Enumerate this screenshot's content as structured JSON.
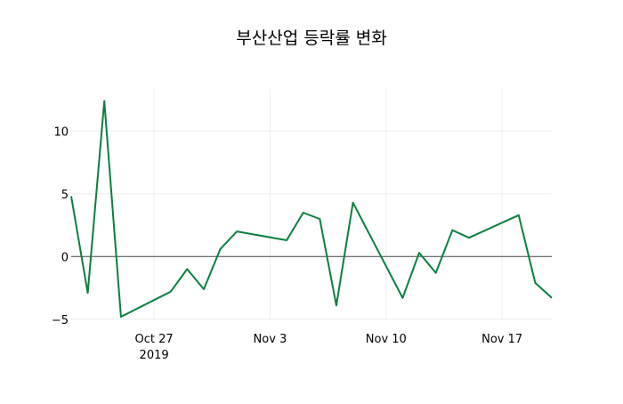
{
  "chart_data": {
    "type": "line",
    "title": "부산산업 등락률 변화",
    "xlabel": "",
    "ylabel": "",
    "x_start": "2019-10-22",
    "x_range": [
      "2019-10-22",
      "2019-11-20"
    ],
    "ylim": [
      -5.5,
      13.2
    ],
    "y_ticks": [
      -5,
      0,
      5,
      10
    ],
    "y_tick_labels": [
      "−5",
      "0",
      "5",
      "10"
    ],
    "x_ticks": [
      {
        "date": "2019-10-27",
        "label": "Oct 27",
        "sublabel": "2019"
      },
      {
        "date": "2019-11-03",
        "label": "Nov 3",
        "sublabel": ""
      },
      {
        "date": "2019-11-10",
        "label": "Nov 10",
        "sublabel": ""
      },
      {
        "date": "2019-11-17",
        "label": "Nov 17",
        "sublabel": ""
      }
    ],
    "grid": true,
    "series": [
      {
        "name": "등락률",
        "color": "#0a7f3f",
        "x": [
          "2019-10-22",
          "2019-10-23",
          "2019-10-24",
          "2019-10-25",
          "2019-10-28",
          "2019-10-29",
          "2019-10-30",
          "2019-10-31",
          "2019-11-01",
          "2019-11-04",
          "2019-11-05",
          "2019-11-06",
          "2019-11-07",
          "2019-11-08",
          "2019-11-11",
          "2019-11-12",
          "2019-11-13",
          "2019-11-14",
          "2019-11-15",
          "2019-11-18",
          "2019-11-19",
          "2019-11-20"
        ],
        "values": [
          4.8,
          -2.9,
          12.4,
          -4.8,
          -2.8,
          -1.0,
          -2.6,
          0.6,
          2.0,
          1.3,
          3.5,
          3.0,
          -3.9,
          4.3,
          -3.3,
          0.3,
          -1.3,
          2.1,
          1.5,
          3.3,
          -2.1,
          -3.3
        ]
      }
    ]
  }
}
